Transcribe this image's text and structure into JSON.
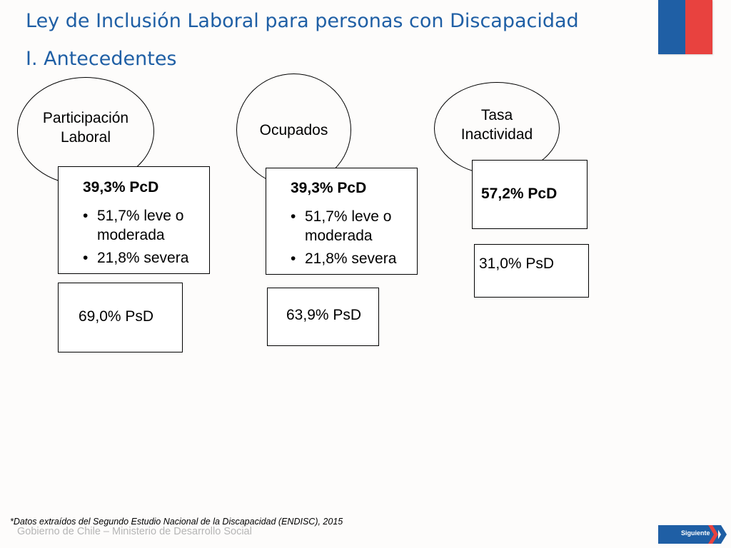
{
  "header": {
    "title": "Ley de Inclusión Laboral para personas con Discapacidad",
    "subtitle": "I. Antecedentes"
  },
  "colors": {
    "title": "#1f5fa5",
    "flag_blue": "#1f5fa5",
    "flag_red": "#e8423f"
  },
  "groups": [
    {
      "name": "Participación Laboral",
      "name_lines": [
        "Participación",
        "Laboral"
      ],
      "pcd": "39,3% PcD",
      "bullets": [
        "51,7% leve o moderada",
        "21,8% severa"
      ],
      "psd": "69,0% PsD"
    },
    {
      "name": "Ocupados",
      "name_lines": [
        "Ocupados"
      ],
      "pcd": "39,3% PcD",
      "bullets": [
        "51,7% leve o moderada",
        "21,8% severa"
      ],
      "psd": "63,9% PsD"
    },
    {
      "name": "Tasa Inactividad",
      "name_lines": [
        "Tasa",
        "Inactividad"
      ],
      "pcd": "57,2% PcD",
      "psd": "31,0% PsD"
    }
  ],
  "footer": {
    "note": "*Datos extraídos del Segundo Estudio Nacional de la Discapacidad (ENDISC), 2015",
    "brand": "Gobierno de Chile – Ministerio de Desarrollo Social",
    "next_label": "Siguiente",
    "next_icon": "chevron-right-icon"
  }
}
